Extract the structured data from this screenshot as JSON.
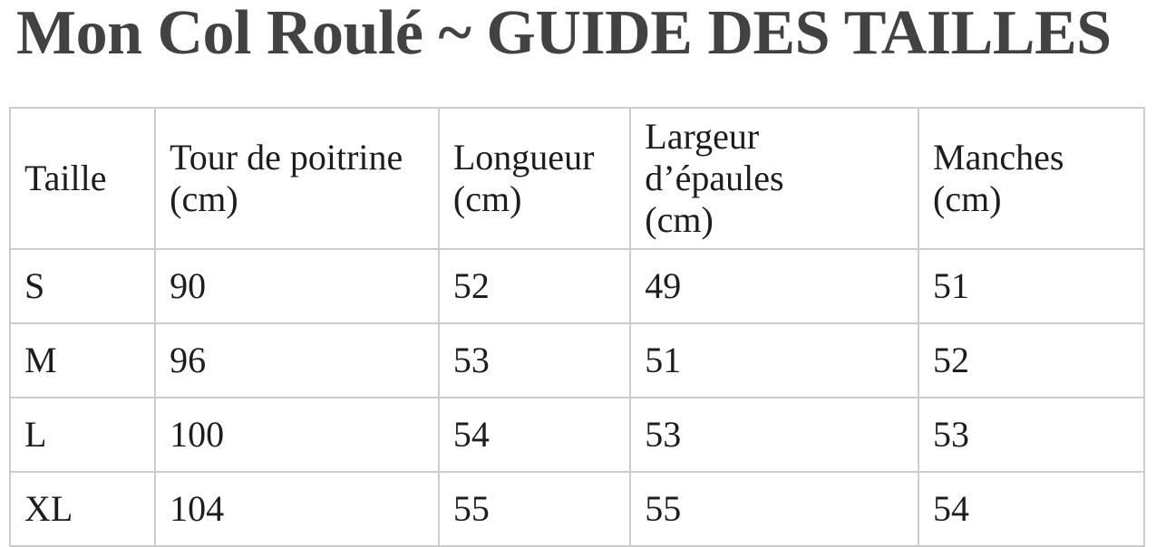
{
  "page": {
    "title": "Mon Col Roulé ~ GUIDE DES TAILLES"
  },
  "size_guide": {
    "columns": [
      {
        "label": "Taille",
        "unit": ""
      },
      {
        "label": "Tour de poitrine",
        "unit": "(cm)"
      },
      {
        "label": "Longueur",
        "unit": "(cm)"
      },
      {
        "label": "Largeur d’épaules",
        "unit": "(cm)"
      },
      {
        "label": "Manches",
        "unit": "(cm)"
      }
    ],
    "rows": [
      {
        "cells": [
          "S",
          "90",
          "52",
          "49",
          "51"
        ]
      },
      {
        "cells": [
          "M",
          "96",
          "53",
          "51",
          "52"
        ]
      },
      {
        "cells": [
          "L",
          "100",
          "54",
          "53",
          "53"
        ]
      },
      {
        "cells": [
          "XL",
          "104",
          "55",
          "55",
          "54"
        ]
      }
    ]
  },
  "colors": {
    "title": "#424242",
    "text": "#1d1d1d",
    "table_border": "#cdcdcd",
    "background": "#ffffff"
  }
}
